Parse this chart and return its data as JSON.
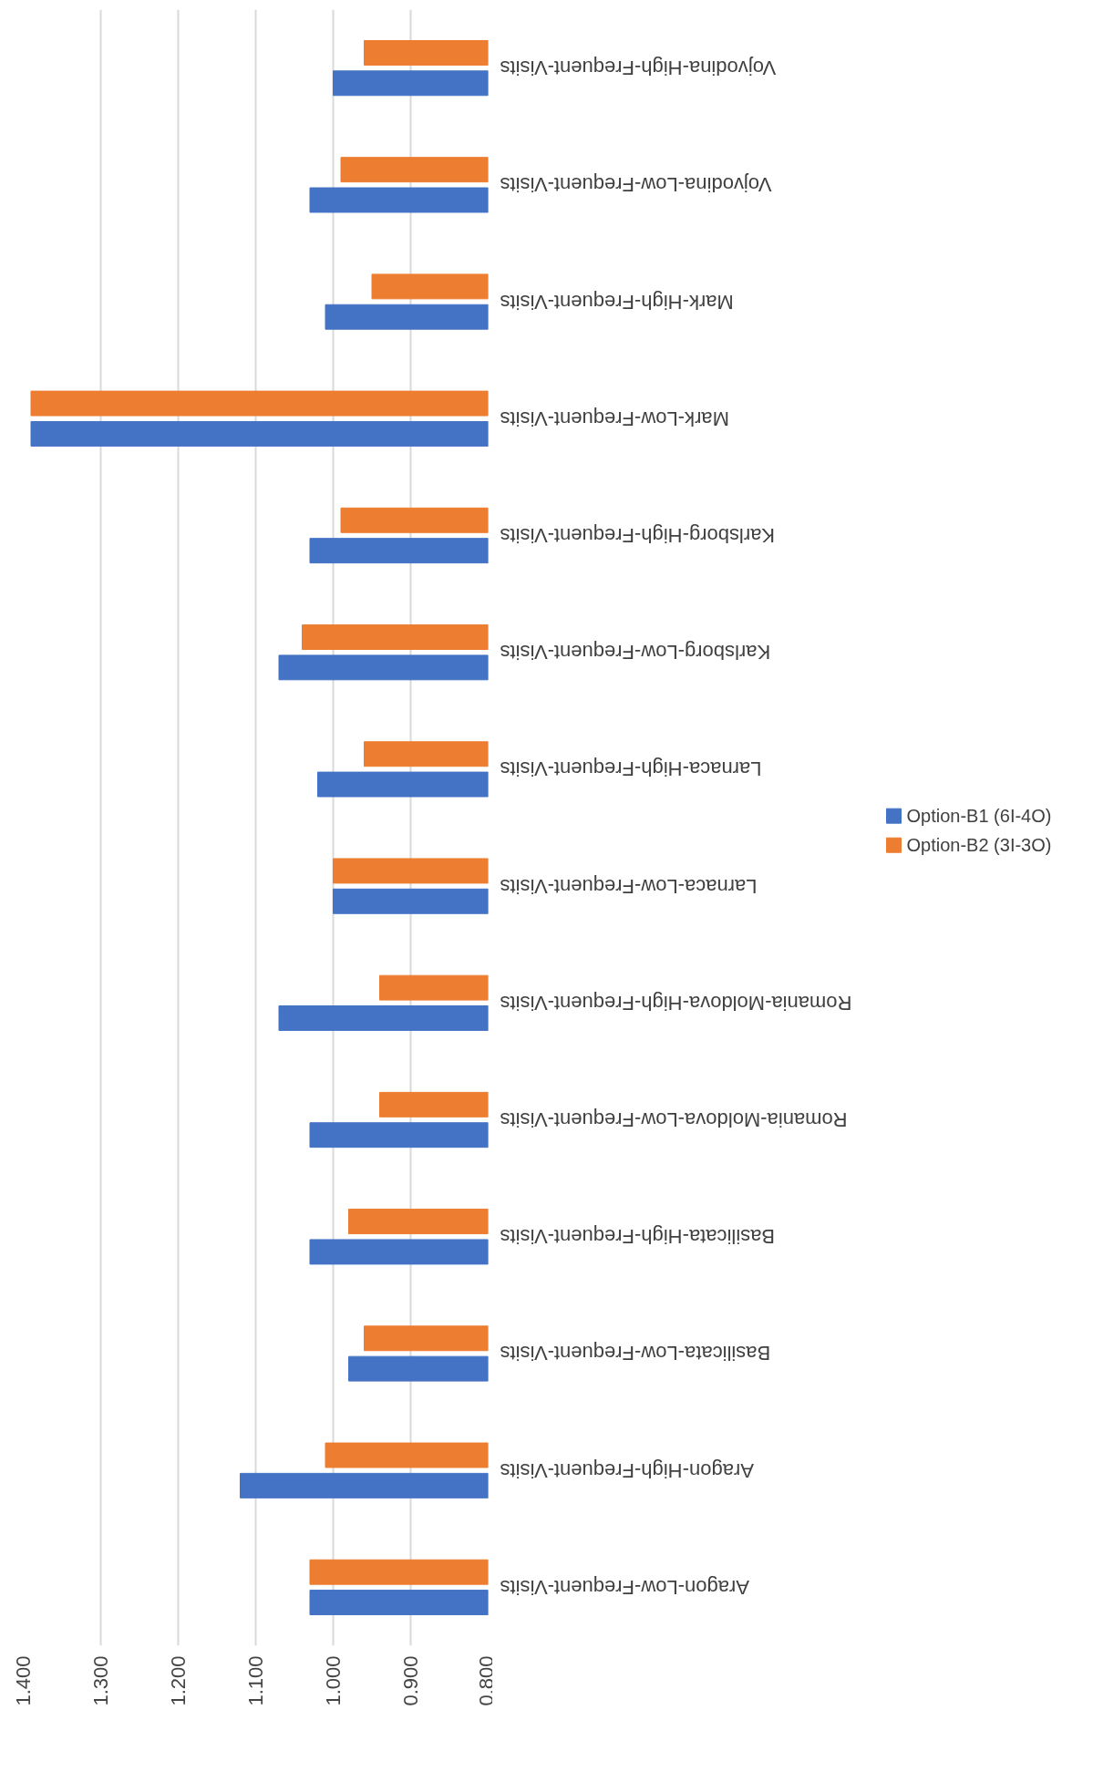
{
  "chart_data": {
    "type": "bar",
    "orientation": "horizontal",
    "categories": [
      "Vojvodina-High-Frequent-Visits",
      "Vojvodina-Low-Frequent-Visits",
      "Mark-High-Frequent-Visits",
      "Mark-Low-Frequent-Visits",
      "Karlsborg-High-Frequent-Visits",
      "Karlsborg-Low-Frequent-Visits",
      "Larnaca-High-Frequent-Visits",
      "Larnaca-Low-Frequent-Visits",
      "Romania-Moldova-High-Frequent-Visits",
      "Romania-Moldova-Low-Frequent-Visits",
      "Basilicata-High-Frequent-Visits",
      "Basilicata-Low-Frequent-Visits",
      "Aragon-High-Frequent-Visits",
      "Aragon-Low-Frequent-Visits"
    ],
    "series": [
      {
        "name": "Option-B1 (6I-4O)",
        "color": "#4472c4",
        "values": [
          1.0,
          1.03,
          1.01,
          1.39,
          1.03,
          1.07,
          1.02,
          1.0,
          1.07,
          1.03,
          1.03,
          0.98,
          1.12,
          1.03
        ]
      },
      {
        "name": "Option-B2 (3I-3O)",
        "color": "#ed7d31",
        "values": [
          0.96,
          0.99,
          0.95,
          1.39,
          0.99,
          1.04,
          0.96,
          1.0,
          0.94,
          0.94,
          0.98,
          0.96,
          1.01,
          1.03
        ]
      }
    ],
    "xlim": [
      1.4,
      0.8
    ],
    "xticks": [
      {
        "value": 1.4,
        "label": "1.400"
      },
      {
        "value": 1.3,
        "label": "1.300"
      },
      {
        "value": 1.2,
        "label": "1.200"
      },
      {
        "value": 1.1,
        "label": "1.100"
      },
      {
        "value": 1.0,
        "label": "1.000"
      },
      {
        "value": 0.9,
        "label": "0.900"
      },
      {
        "value": 0.8,
        "label": "0.800"
      }
    ],
    "grid": "x",
    "legend": "right"
  }
}
